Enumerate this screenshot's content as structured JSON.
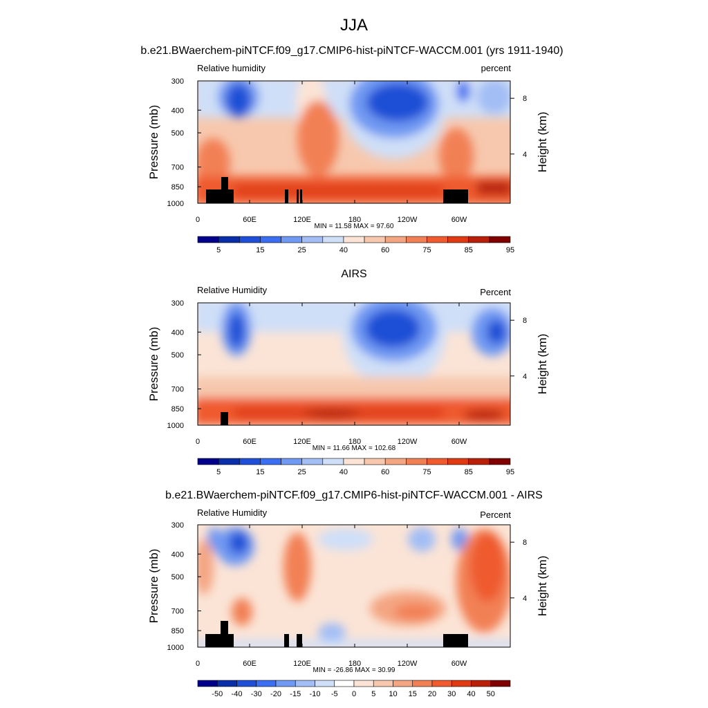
{
  "figure_title": "JJA",
  "chart_data": [
    {
      "type": "heatmap",
      "title": "b.e21.BWaerchem-piNTCF.f09_g17.CMIP6-hist-piNTCF-WACCM.001 (yrs 1911-1940)",
      "left_label": "Relative humidity",
      "right_label": "percent",
      "ylabel": "Pressure (mb)",
      "ylabel_right": "Height (km)",
      "x_ticks": [
        "0",
        "60E",
        "120E",
        "180",
        "120W",
        "60W"
      ],
      "y_ticks": [
        "300",
        "400",
        "500",
        "700",
        "850",
        "1000"
      ],
      "y_ticks_right": [
        "8",
        "4"
      ],
      "stats": "MIN =  11.58  MAX =  97.60",
      "colorbar_labels": [
        "5",
        "15",
        "25",
        "40",
        "60",
        "75",
        "85",
        "95"
      ],
      "colorbar_colors": [
        "#00008b",
        "#0a2ea8",
        "#1f4fd6",
        "#3b6ef0",
        "#6f99f2",
        "#a2bef5",
        "#cfdff8",
        "#fbe4d6",
        "#f7c8ae",
        "#f4a582",
        "#f28055",
        "#ef5a2e",
        "#df3a12",
        "#b8200a",
        "#800000"
      ]
    },
    {
      "type": "heatmap",
      "title": "AIRS",
      "left_label": "Relative Humidity",
      "right_label": "Percent",
      "ylabel": "Pressure (mb)",
      "ylabel_right": "Height (km)",
      "x_ticks": [
        "0",
        "60E",
        "120E",
        "180",
        "120W",
        "60W"
      ],
      "y_ticks": [
        "300",
        "400",
        "500",
        "700",
        "850",
        "1000"
      ],
      "y_ticks_right": [
        "8",
        "4"
      ],
      "stats": "MIN =  11.66  MAX = 102.68",
      "colorbar_labels": [
        "5",
        "15",
        "25",
        "40",
        "60",
        "75",
        "85",
        "95"
      ],
      "colorbar_colors": [
        "#00008b",
        "#0a2ea8",
        "#1f4fd6",
        "#3b6ef0",
        "#6f99f2",
        "#a2bef5",
        "#cfdff8",
        "#fbe4d6",
        "#f7c8ae",
        "#f4a582",
        "#f28055",
        "#ef5a2e",
        "#df3a12",
        "#b8200a",
        "#800000"
      ]
    },
    {
      "type": "heatmap",
      "title": "b.e21.BWaerchem-piNTCF.f09_g17.CMIP6-hist-piNTCF-WACCM.001 - AIRS",
      "left_label": "Relative Humidity",
      "right_label": "Percent",
      "ylabel": "Pressure (mb)",
      "ylabel_right": "Height (km)",
      "x_ticks": [
        "0",
        "60E",
        "120E",
        "180",
        "120W",
        "60W"
      ],
      "y_ticks": [
        "300",
        "400",
        "500",
        "700",
        "850",
        "1000"
      ],
      "y_ticks_right": [
        "8",
        "4"
      ],
      "stats": "MIN = -26.86  MAX =  30.99",
      "colorbar_labels": [
        "-50",
        "-40",
        "-30",
        "-20",
        "-15",
        "-10",
        "-5",
        "0",
        "5",
        "10",
        "15",
        "20",
        "30",
        "40",
        "50"
      ],
      "colorbar_colors": [
        "#00008b",
        "#0a2ea8",
        "#1f4fd6",
        "#3b6ef0",
        "#6f99f2",
        "#a2bef5",
        "#cfdff8",
        "#ffffff",
        "#fbe4d6",
        "#f7c8ae",
        "#f4a582",
        "#f28055",
        "#ef5a2e",
        "#df3a12",
        "#b8200a",
        "#800000"
      ]
    }
  ]
}
